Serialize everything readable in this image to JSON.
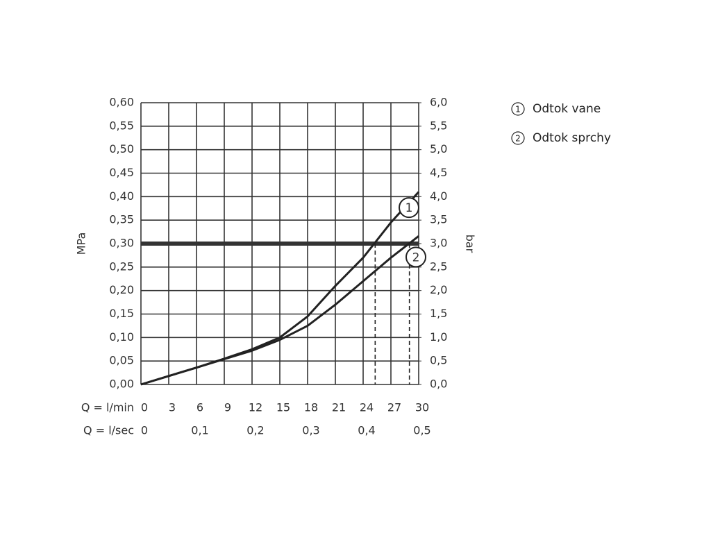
{
  "chart_data": {
    "type": "line",
    "x_axis_label": "Q = l/min",
    "x2_axis_label": "Q = l/sec",
    "y_axis_label": "MPa",
    "y2_axis_label": "bar",
    "x": [
      0,
      3,
      6,
      9,
      12,
      15,
      18,
      21,
      24,
      27,
      30
    ],
    "series": [
      {
        "name": "Odtok vane",
        "label": "1",
        "color": "#222222",
        "values": [
          0,
          0.018,
          0.036,
          0.055,
          0.075,
          0.1,
          0.145,
          0.21,
          0.27,
          0.345,
          0.41
        ]
      },
      {
        "name": "Odtok sprchy",
        "label": "2",
        "color": "#222222",
        "values": [
          0,
          0.018,
          0.036,
          0.054,
          0.072,
          0.095,
          0.125,
          0.17,
          0.22,
          0.27,
          0.316
        ]
      }
    ],
    "reference_line": 0.3,
    "dashed_x": [
      25.3,
      29
    ],
    "xlim": [
      0,
      30
    ],
    "xticks": [
      0,
      3,
      6,
      9,
      12,
      15,
      18,
      21,
      24,
      27,
      30
    ],
    "x2lim": [
      0,
      0.5
    ],
    "x2ticks": [
      0,
      {
        "value": 0.1,
        "label": "0,1"
      },
      {
        "value": 0.2,
        "label": "0,2"
      },
      {
        "value": 0.3,
        "label": "0,3"
      },
      {
        "value": 0.4,
        "label": "0,4"
      },
      {
        "value": 0.5,
        "label": "0,5"
      }
    ],
    "ylim": [
      0,
      0.6
    ],
    "yticks": [
      {
        "value": 0,
        "label": "0,00"
      },
      {
        "value": 0.05,
        "label": "0,05"
      },
      {
        "value": 0.1,
        "label": "0,10"
      },
      {
        "value": 0.15,
        "label": "0,15"
      },
      {
        "value": 0.2,
        "label": "0,20"
      },
      {
        "value": 0.25,
        "label": "0,25"
      },
      {
        "value": 0.3,
        "label": "0,30"
      },
      {
        "value": 0.35,
        "label": "0,35"
      },
      {
        "value": 0.4,
        "label": "0,40"
      },
      {
        "value": 0.45,
        "label": "0,45"
      },
      {
        "value": 0.5,
        "label": "0,50"
      },
      {
        "value": 0.55,
        "label": "0,55"
      },
      {
        "value": 0.6,
        "label": "0,60"
      }
    ],
    "y2lim": [
      0,
      6
    ],
    "y2ticks": [
      {
        "value": 0,
        "label": "0,0"
      },
      {
        "value": 0.5,
        "label": "0,5"
      },
      {
        "value": 1,
        "label": "1,0"
      },
      {
        "value": 1.5,
        "label": "1,5"
      },
      {
        "value": 2,
        "label": "2,0"
      },
      {
        "value": 2.5,
        "label": "2,5"
      },
      {
        "value": 3,
        "label": "3,0"
      },
      {
        "value": 3.5,
        "label": "3,5"
      },
      {
        "value": 4,
        "label": "4,0"
      },
      {
        "value": 4.5,
        "label": "4,5"
      },
      {
        "value": 5,
        "label": "5,0"
      },
      {
        "value": 5.5,
        "label": "5,5"
      },
      {
        "value": 6,
        "label": "6,0"
      }
    ],
    "grid": true
  }
}
